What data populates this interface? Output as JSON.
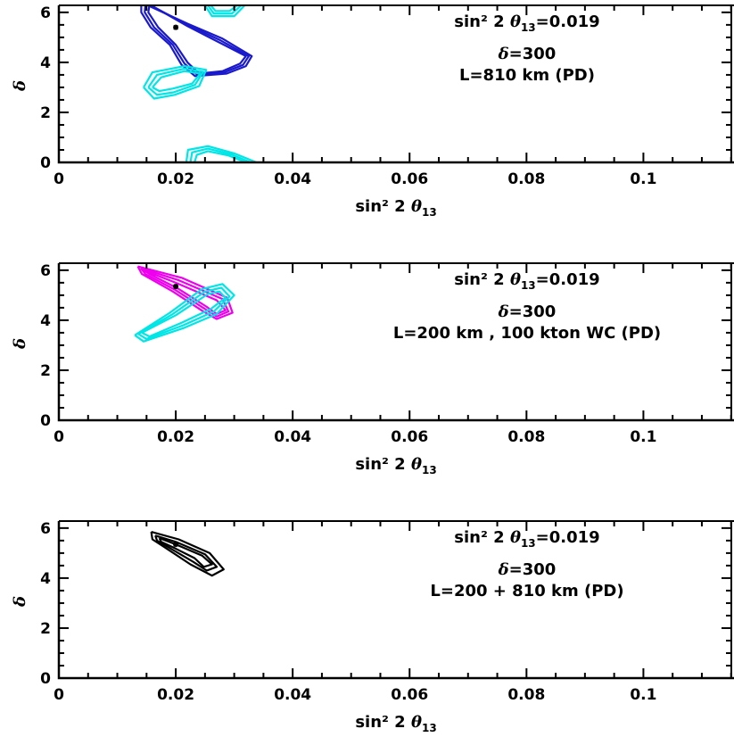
{
  "chart_data": [
    {
      "type": "contour",
      "xlabel": {
        "main": "sin² 2 ",
        "greek": "θ",
        "sub": "13"
      },
      "ylabel": "δ",
      "xlim": [
        0,
        0.1155
      ],
      "ylim": [
        0,
        6.28
      ],
      "xticks": [
        "0",
        "0.02",
        "0.04",
        "0.06",
        "0.08",
        "0.1"
      ],
      "yticks": [
        "0",
        "2",
        "4",
        "6"
      ],
      "annotation": {
        "line1": {
          "pre": "sin² 2 ",
          "greek": "θ",
          "sub": "13",
          "post": "=0.019"
        },
        "line2": {
          "greek": "δ",
          "post": "=300"
        },
        "line3": "L=810 km (PD)"
      },
      "true_point": {
        "x": 0.02,
        "y": 5.4
      },
      "series": [
        {
          "color": "#1a1acc",
          "region": "upper-left",
          "contours": [
            [
              [
                0.016,
                6.25
              ],
              [
                0.022,
                5.45
              ],
              [
                0.027,
                4.85
              ],
              [
                0.032,
                4.25
              ],
              [
                0.031,
                3.95
              ],
              [
                0.028,
                3.65
              ],
              [
                0.024,
                3.55
              ],
              [
                0.022,
                4.0
              ],
              [
                0.02,
                4.7
              ],
              [
                0.017,
                5.4
              ],
              [
                0.0153,
                6.0
              ],
              [
                0.0155,
                6.3
              ]
            ],
            [
              [
                0.0155,
                6.3
              ],
              [
                0.022,
                5.5
              ],
              [
                0.0275,
                4.9
              ],
              [
                0.0325,
                4.25
              ],
              [
                0.0315,
                3.9
              ],
              [
                0.0283,
                3.6
              ],
              [
                0.0237,
                3.5
              ],
              [
                0.0215,
                3.95
              ],
              [
                0.0195,
                4.7
              ],
              [
                0.0163,
                5.4
              ],
              [
                0.0147,
                6.0
              ],
              [
                0.0148,
                6.3
              ]
            ],
            [
              [
                0.015,
                6.3
              ],
              [
                0.022,
                5.55
              ],
              [
                0.028,
                4.95
              ],
              [
                0.033,
                4.25
              ],
              [
                0.032,
                3.85
              ],
              [
                0.0287,
                3.55
              ],
              [
                0.0233,
                3.45
              ],
              [
                0.021,
                3.9
              ],
              [
                0.019,
                4.7
              ],
              [
                0.0157,
                5.4
              ],
              [
                0.0141,
                6.0
              ],
              [
                0.0141,
                6.3
              ]
            ]
          ]
        },
        {
          "color": "#00e5e5",
          "region": "middle-lobe",
          "contours": [
            [
              [
                0.016,
                3.0
              ],
              [
                0.0175,
                3.4
              ],
              [
                0.0215,
                3.65
              ],
              [
                0.0242,
                3.55
              ],
              [
                0.0228,
                3.15
              ],
              [
                0.0195,
                2.95
              ],
              [
                0.0172,
                2.85
              ],
              [
                0.016,
                3.0
              ]
            ],
            [
              [
                0.0153,
                3.0
              ],
              [
                0.0168,
                3.5
              ],
              [
                0.0215,
                3.75
              ],
              [
                0.0247,
                3.62
              ],
              [
                0.0233,
                3.1
              ],
              [
                0.0196,
                2.8
              ],
              [
                0.0168,
                2.7
              ],
              [
                0.0153,
                3.0
              ]
            ],
            [
              [
                0.0145,
                3.0
              ],
              [
                0.016,
                3.6
              ],
              [
                0.0215,
                3.85
              ],
              [
                0.0252,
                3.7
              ],
              [
                0.024,
                3.05
              ],
              [
                0.0198,
                2.7
              ],
              [
                0.0163,
                2.55
              ],
              [
                0.0145,
                3.0
              ]
            ]
          ]
        },
        {
          "color": "#00e5e5",
          "region": "top-edge",
          "contours": [
            [
              [
                0.026,
                6.28
              ],
              [
                0.0268,
                6.05
              ],
              [
                0.0292,
                6.05
              ],
              [
                0.0305,
                6.28
              ]
            ],
            [
              [
                0.0255,
                6.28
              ],
              [
                0.0265,
                5.95
              ],
              [
                0.0296,
                5.95
              ],
              [
                0.0312,
                6.28
              ]
            ],
            [
              [
                0.025,
                6.28
              ],
              [
                0.0262,
                5.85
              ],
              [
                0.03,
                5.85
              ],
              [
                0.0318,
                6.28
              ]
            ]
          ]
        },
        {
          "color": "#00e5e5",
          "region": "bottom-edge",
          "contours": [
            [
              [
                0.0232,
                0.0
              ],
              [
                0.0236,
                0.3
              ],
              [
                0.0255,
                0.45
              ],
              [
                0.029,
                0.28
              ],
              [
                0.032,
                0.0
              ]
            ],
            [
              [
                0.0225,
                0.0
              ],
              [
                0.0228,
                0.4
              ],
              [
                0.0255,
                0.55
              ],
              [
                0.0295,
                0.32
              ],
              [
                0.0328,
                0.0
              ]
            ],
            [
              [
                0.0218,
                0.0
              ],
              [
                0.0221,
                0.5
              ],
              [
                0.0255,
                0.65
              ],
              [
                0.03,
                0.36
              ],
              [
                0.0338,
                0.0
              ]
            ]
          ]
        }
      ]
    },
    {
      "type": "contour",
      "xlabel": {
        "main": "sin² 2 ",
        "greek": "θ",
        "sub": "13"
      },
      "ylabel": "δ",
      "xlim": [
        0,
        0.1155
      ],
      "ylim": [
        0,
        6.28
      ],
      "xticks": [
        "0",
        "0.02",
        "0.04",
        "0.06",
        "0.08",
        "0.1"
      ],
      "yticks": [
        "0",
        "2",
        "4",
        "6"
      ],
      "annotation": {
        "line1": {
          "pre": "sin² 2 ",
          "greek": "θ",
          "sub": "13",
          "post": "=0.019"
        },
        "line2": {
          "greek": "δ",
          "post": "=300"
        },
        "line3": "L=200 km , 100 kton WC (PD)"
      },
      "true_point": {
        "x": 0.02,
        "y": 5.35
      },
      "series": [
        {
          "color": "#ee00ee",
          "region": "upper-band",
          "contours": [
            [
              [
                0.0145,
                6.0
              ],
              [
                0.02,
                5.5
              ],
              [
                0.027,
                4.8
              ],
              [
                0.0285,
                4.4
              ],
              [
                0.027,
                4.25
              ],
              [
                0.0252,
                4.55
              ],
              [
                0.0205,
                5.25
              ],
              [
                0.0155,
                5.85
              ],
              [
                0.0145,
                6.0
              ]
            ],
            [
              [
                0.014,
                6.08
              ],
              [
                0.0205,
                5.6
              ],
              [
                0.028,
                4.85
              ],
              [
                0.029,
                4.35
              ],
              [
                0.027,
                4.15
              ],
              [
                0.025,
                4.45
              ],
              [
                0.02,
                5.2
              ],
              [
                0.0148,
                5.85
              ],
              [
                0.014,
                6.08
              ]
            ],
            [
              [
                0.0135,
                6.15
              ],
              [
                0.021,
                5.7
              ],
              [
                0.0288,
                4.9
              ],
              [
                0.0297,
                4.3
              ],
              [
                0.027,
                4.05
              ],
              [
                0.0247,
                4.35
              ],
              [
                0.0195,
                5.15
              ],
              [
                0.0142,
                5.85
              ],
              [
                0.0135,
                6.15
              ]
            ]
          ]
        },
        {
          "color": "#00e5e5",
          "region": "lower-band",
          "contours": [
            [
              [
                0.0142,
                3.5
              ],
              [
                0.02,
                4.2
              ],
              [
                0.0255,
                5.05
              ],
              [
                0.0275,
                5.15
              ],
              [
                0.0285,
                4.9
              ],
              [
                0.026,
                4.45
              ],
              [
                0.021,
                3.9
              ],
              [
                0.0155,
                3.35
              ],
              [
                0.0142,
                3.5
              ]
            ],
            [
              [
                0.0136,
                3.45
              ],
              [
                0.0195,
                4.25
              ],
              [
                0.025,
                5.15
              ],
              [
                0.0278,
                5.3
              ],
              [
                0.0292,
                4.95
              ],
              [
                0.0265,
                4.35
              ],
              [
                0.0213,
                3.8
              ],
              [
                0.015,
                3.25
              ],
              [
                0.0136,
                3.45
              ]
            ],
            [
              [
                0.013,
                3.4
              ],
              [
                0.019,
                4.3
              ],
              [
                0.0245,
                5.25
              ],
              [
                0.028,
                5.45
              ],
              [
                0.03,
                5.0
              ],
              [
                0.027,
                4.25
              ],
              [
                0.0215,
                3.7
              ],
              [
                0.0145,
                3.15
              ],
              [
                0.013,
                3.4
              ]
            ]
          ]
        }
      ]
    },
    {
      "type": "contour",
      "xlabel": {
        "main": "sin² 2 ",
        "greek": "θ",
        "sub": "13"
      },
      "ylabel": "δ",
      "xlim": [
        0,
        0.1155
      ],
      "ylim": [
        0,
        6.28
      ],
      "xticks": [
        "0",
        "0.02",
        "0.04",
        "0.06",
        "0.08",
        "0.1"
      ],
      "yticks": [
        "0",
        "2",
        "4",
        "6"
      ],
      "annotation": {
        "line1": {
          "pre": "sin² 2 ",
          "greek": "θ",
          "sub": "13",
          "post": "=0.019"
        },
        "line2": {
          "greek": "δ",
          "post": "=300"
        },
        "line3": "L=200 + 810 km (PD)"
      },
      "true_point": {
        "x": 0.02,
        "y": 5.35
      },
      "series": [
        {
          "color": "#000000",
          "region": "single-band",
          "contours": [
            [
              [
                0.0172,
                5.6
              ],
              [
                0.02,
                5.35
              ],
              [
                0.0245,
                4.9
              ],
              [
                0.0262,
                4.55
              ],
              [
                0.0248,
                4.45
              ],
              [
                0.0232,
                4.8
              ],
              [
                0.0198,
                5.2
              ],
              [
                0.0175,
                5.45
              ],
              [
                0.0172,
                5.6
              ]
            ],
            [
              [
                0.0165,
                5.7
              ],
              [
                0.02,
                5.45
              ],
              [
                0.025,
                4.95
              ],
              [
                0.027,
                4.45
              ],
              [
                0.0253,
                4.3
              ],
              [
                0.023,
                4.65
              ],
              [
                0.019,
                5.2
              ],
              [
                0.0168,
                5.5
              ],
              [
                0.0165,
                5.7
              ]
            ],
            [
              [
                0.0158,
                5.85
              ],
              [
                0.0205,
                5.55
              ],
              [
                0.0258,
                5.0
              ],
              [
                0.0282,
                4.35
              ],
              [
                0.0262,
                4.1
              ],
              [
                0.0225,
                4.55
              ],
              [
                0.018,
                5.25
              ],
              [
                0.016,
                5.55
              ],
              [
                0.0158,
                5.85
              ]
            ]
          ]
        }
      ]
    }
  ]
}
